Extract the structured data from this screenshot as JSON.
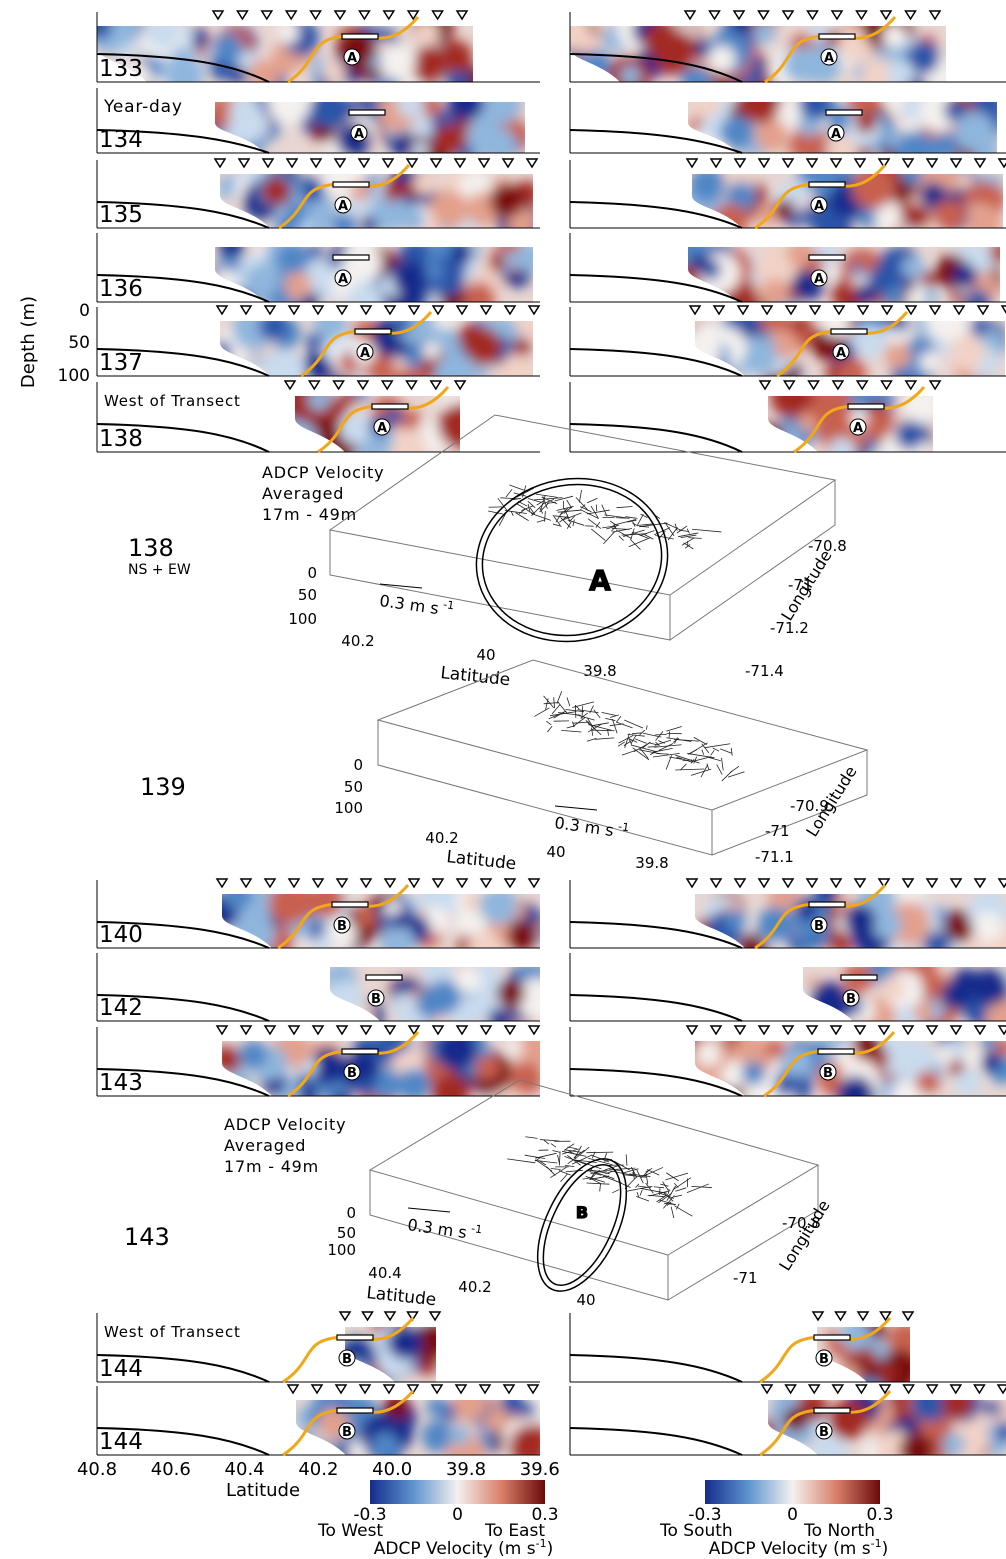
{
  "rows": [
    {
      "day": "133",
      "marker": "A"
    },
    {
      "day": "134",
      "note": "Year-day",
      "marker": "A"
    },
    {
      "day": "135",
      "marker": "A"
    },
    {
      "day": "136",
      "marker": "A"
    },
    {
      "day": "137",
      "marker": "A"
    },
    {
      "day": "138",
      "note": "West of Transect",
      "marker": "A"
    },
    {
      "day": "140",
      "marker": "B"
    },
    {
      "day": "142",
      "marker": "B"
    },
    {
      "day": "143",
      "marker": "B"
    },
    {
      "day": "144",
      "note": "West of Transect",
      "marker": "B"
    },
    {
      "day": "144",
      "marker": "B"
    }
  ],
  "depth_axis": {
    "label": "Depth (m)",
    "ticks": [
      "0",
      "50",
      "100"
    ]
  },
  "views": [
    {
      "day": "138",
      "subtitle": "NS + EW",
      "caption": [
        "ADCP Velocity",
        "Averaged",
        "17m - 49m"
      ],
      "depth_ticks": [
        "0",
        "50",
        "100"
      ],
      "lat_ticks": [
        "40.2",
        "40",
        "39.8"
      ],
      "lat_label": "Latitude",
      "lon_ticks": [
        "-70.8",
        "-71",
        "-71.2",
        "-71.4"
      ],
      "lon_label": "Longitude",
      "scale": "0.3 m s",
      "scale_unit": "-1",
      "marker": "A"
    },
    {
      "day": "139",
      "depth_ticks": [
        "0",
        "50",
        "100"
      ],
      "lat_ticks": [
        "40.2",
        "40",
        "39.8"
      ],
      "lat_label": "Latitude",
      "lon_ticks": [
        "-70.9",
        "-71",
        "-71.1"
      ],
      "lon_label": "Longitude",
      "scale": "0.3 m s",
      "scale_unit": "-1"
    },
    {
      "day": "143",
      "caption": [
        "ADCP Velocity",
        "Averaged",
        "17m - 49m"
      ],
      "depth_ticks": [
        "0",
        "50",
        "100"
      ],
      "lat_ticks": [
        "40.4",
        "40.2",
        "40"
      ],
      "lat_label": "Latitude",
      "lon_ticks": [
        "-70.8",
        "-71"
      ],
      "lon_label": "Longitude",
      "scale": "0.3 m s",
      "scale_unit": "-1",
      "marker": "B"
    }
  ],
  "x_axis": {
    "ticks": [
      "40.8",
      "40.6",
      "40.4",
      "40.2",
      "40.0",
      "39.8",
      "39.6"
    ],
    "label": "Latitude"
  },
  "colorbars": [
    {
      "ticks": [
        "-0.3",
        "0",
        "0.3"
      ],
      "low": "To West",
      "high": "To East",
      "label": "ADCP Velocity (m s",
      "label_sup": "-1",
      "label_end": ")"
    },
    {
      "ticks": [
        "-0.3",
        "0",
        "0.3"
      ],
      "low": "To South",
      "high": "To North",
      "label": "ADCP Velocity (m s",
      "label_sup": "-1",
      "label_end": ")"
    }
  ]
}
